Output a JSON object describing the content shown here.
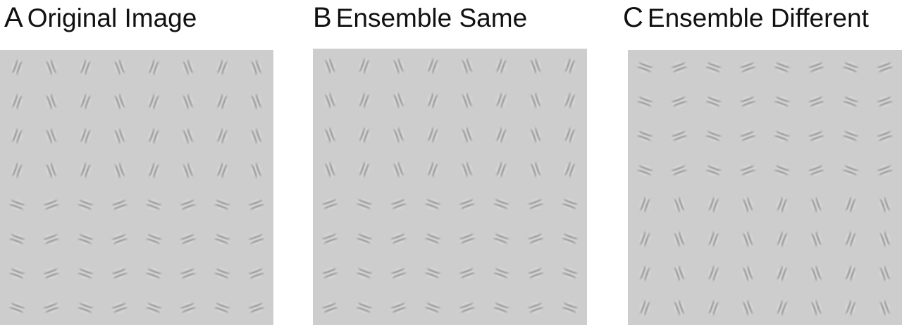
{
  "panels": [
    {
      "letter": "A",
      "title": "Original Image",
      "grid_rows": 8,
      "grid_cols": 8,
      "orientation_rows": [
        "near-vertical",
        "near-vertical",
        "near-vertical",
        "near-vertical",
        "near-horizontal",
        "near-horizontal",
        "near-horizontal",
        "near-horizontal"
      ],
      "tilt_pattern_vertical": [
        "cw",
        "ccw",
        "cw",
        "ccw",
        "cw",
        "ccw",
        "cw",
        "ccw"
      ],
      "tilt_pattern_horizontal": [
        "cw",
        "ccw",
        "cw",
        "ccw",
        "cw",
        "ccw",
        "cw",
        "ccw"
      ]
    },
    {
      "letter": "B",
      "title": "Ensemble Same",
      "grid_rows": 8,
      "grid_cols": 8,
      "orientation_rows": [
        "near-vertical",
        "near-vertical",
        "near-vertical",
        "near-vertical",
        "near-horizontal",
        "near-horizontal",
        "near-horizontal",
        "near-horizontal"
      ],
      "tilt_pattern_vertical": [
        "ccw",
        "cw",
        "ccw",
        "cw",
        "ccw",
        "cw",
        "ccw",
        "cw"
      ],
      "tilt_pattern_horizontal": [
        "ccw",
        "cw",
        "ccw",
        "cw",
        "ccw",
        "cw",
        "ccw",
        "cw"
      ]
    },
    {
      "letter": "C",
      "title": "Ensemble Different",
      "grid_rows": 8,
      "grid_cols": 8,
      "orientation_rows": [
        "near-horizontal",
        "near-horizontal",
        "near-horizontal",
        "near-horizontal",
        "near-vertical",
        "near-vertical",
        "near-vertical",
        "near-vertical"
      ],
      "tilt_pattern_vertical": [
        "cw",
        "ccw",
        "cw",
        "ccw",
        "cw",
        "ccw",
        "cw",
        "ccw"
      ],
      "tilt_pattern_horizontal": [
        "cw",
        "ccw",
        "cw",
        "ccw",
        "cw",
        "ccw",
        "cw",
        "ccw"
      ]
    }
  ],
  "colors": {
    "background": "#ffffff",
    "field": "#cdcdcd",
    "patch_dark": "#3a3a3a",
    "patch_light": "#f4f4f4"
  }
}
